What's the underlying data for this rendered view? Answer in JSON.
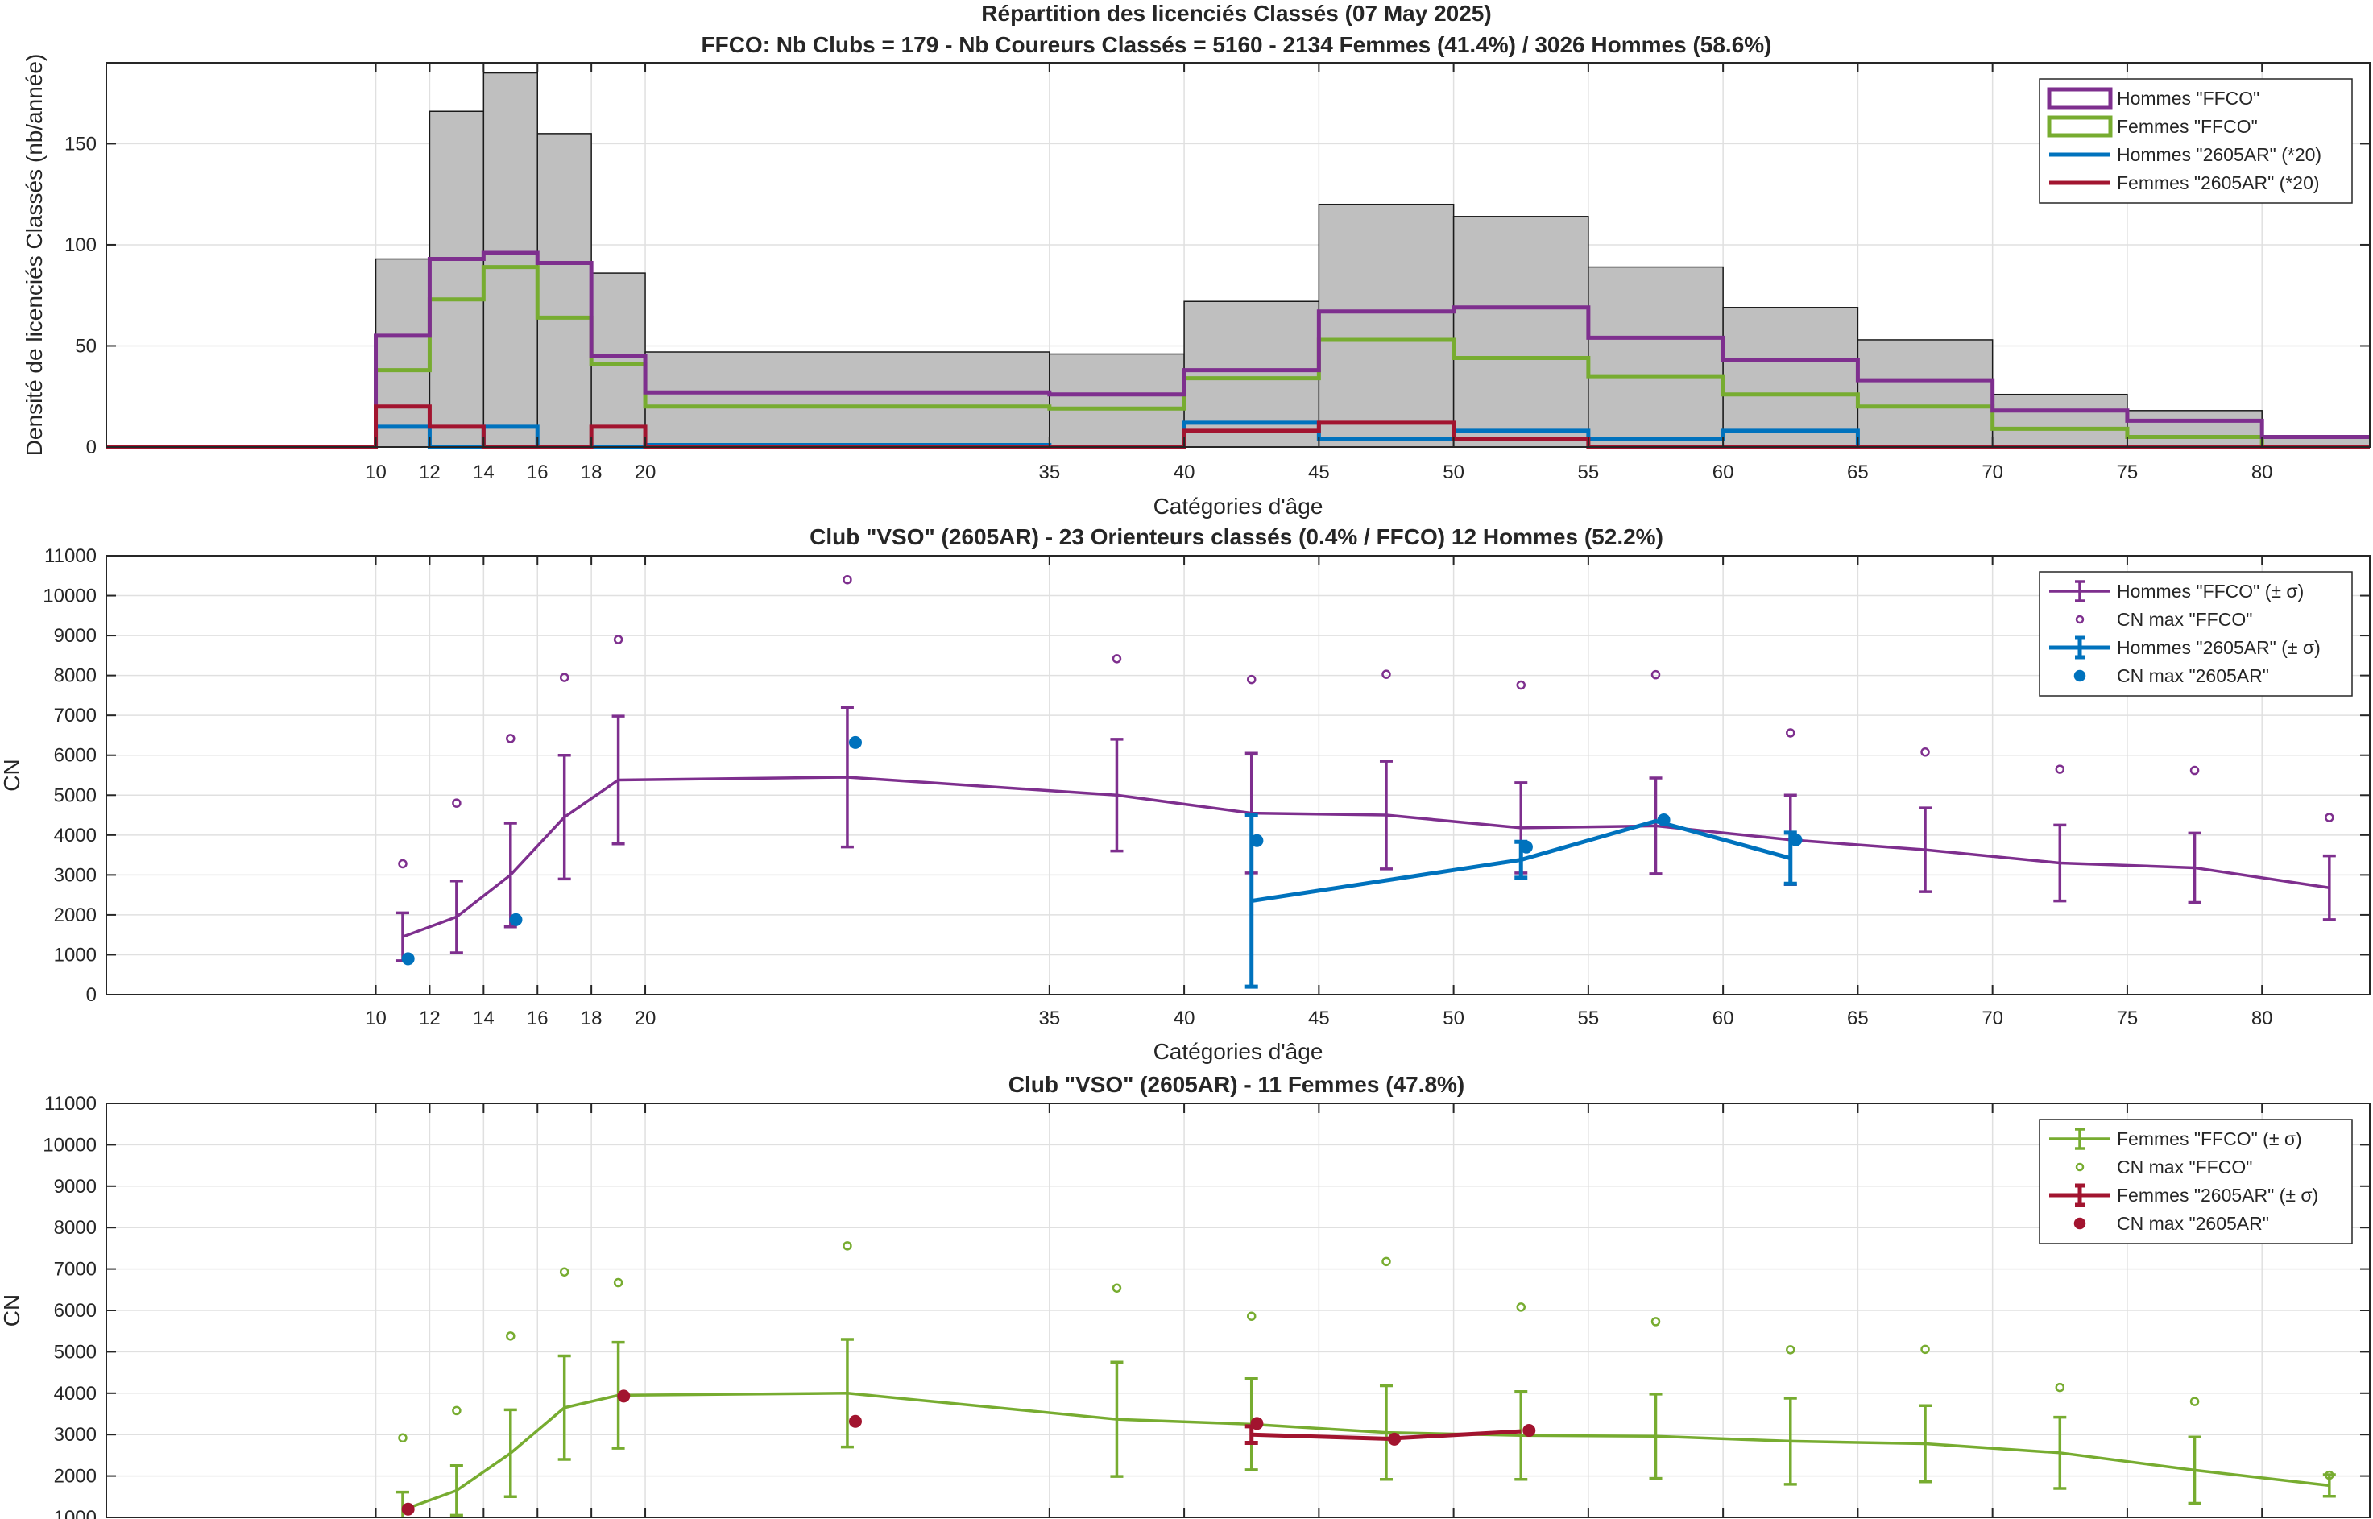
{
  "figure": {
    "title_line1": "Répartition des licenciés Classés (07 May 2025)",
    "title_line2": "FFCO: Nb Clubs = 179   -   Nb Coureurs Classés = 5160   -   2134 Femmes (41.4%) / 3026 Hommes (58.6%)"
  },
  "colors": {
    "men_ffco": "#7E2F8E",
    "women_ffco": "#77AC30",
    "men_club": "#0072BD",
    "women_club": "#A2142F",
    "hist_fill": "#BFBFBF",
    "grid": "#E0E0E0"
  },
  "chart_data": [
    {
      "type": "bar",
      "ylabel": "Densité de licenciés Classés (nb/année)",
      "xlabel": "Catégories d'âge",
      "xlim": [
        0,
        84
      ],
      "ylim": [
        0,
        190
      ],
      "xticks": [
        10,
        12,
        14,
        16,
        18,
        20,
        35,
        40,
        45,
        50,
        55,
        60,
        65,
        70,
        75,
        80
      ],
      "yticks": [
        0,
        50,
        100,
        150
      ],
      "grid": true,
      "legend_position": "top-right",
      "bin_edges": [
        0,
        10,
        12,
        14,
        16,
        18,
        20,
        35,
        40,
        45,
        50,
        55,
        60,
        65,
        70,
        75,
        80,
        84
      ],
      "total": [
        0,
        93,
        166,
        185,
        155,
        86,
        47,
        46,
        72,
        120,
        114,
        89,
        69,
        53,
        26,
        18,
        5
      ],
      "series": [
        {
          "name": "Hommes \"FFCO\"",
          "color": "men_ffco",
          "values": [
            0,
            55,
            93,
            96,
            91,
            45,
            27,
            26,
            38,
            67,
            69,
            54,
            43,
            33,
            18,
            13,
            5
          ]
        },
        {
          "name": "Femmes \"FFCO\"",
          "color": "women_ffco",
          "values": [
            0,
            38,
            73,
            89,
            64,
            41,
            20,
            19,
            34,
            53,
            44,
            35,
            26,
            20,
            9,
            5,
            0
          ]
        },
        {
          "name": "Hommes \"2605AR\" (*20)",
          "color": "men_club",
          "values": [
            0,
            10,
            0,
            10,
            0,
            0,
            1,
            0,
            12,
            4,
            8,
            4,
            8,
            0,
            0,
            0,
            0
          ]
        },
        {
          "name": "Femmes \"2605AR\" (*20)",
          "color": "women_club",
          "values": [
            0,
            20,
            10,
            0,
            0,
            10,
            0,
            0,
            8,
            12,
            4,
            0,
            0,
            0,
            0,
            0,
            0
          ]
        }
      ]
    },
    {
      "type": "line",
      "title": "Club \"VSO\" (2605AR)  -  23 Orienteurs classés (0.4% / FFCO)  12 Hommes (52.2%)",
      "ylabel": "CN",
      "xlabel": "Catégories d'âge",
      "xlim": [
        0,
        84
      ],
      "ylim": [
        0,
        11000
      ],
      "xticks": [
        10,
        12,
        14,
        16,
        18,
        20,
        35,
        40,
        45,
        50,
        55,
        60,
        65,
        70,
        75,
        80
      ],
      "yticks": [
        0,
        1000,
        2000,
        3000,
        4000,
        5000,
        6000,
        7000,
        8000,
        9000,
        10000,
        11000
      ],
      "grid": true,
      "legend_position": "top-right",
      "series": [
        {
          "name": "Hommes \"FFCO\" (± σ)",
          "color": "men_ffco",
          "kind": "errorline",
          "x": [
            11,
            13,
            15,
            17,
            19,
            27.5,
            37.5,
            42.5,
            47.5,
            52.5,
            57.5,
            62.5,
            67.5,
            72.5,
            77.5,
            82.5
          ],
          "y": [
            1450,
            1950,
            3000,
            4450,
            5380,
            5450,
            5000,
            4550,
            4500,
            4180,
            4230,
            3880,
            3630,
            3300,
            3180,
            2680
          ],
          "err": [
            600,
            900,
            1300,
            1550,
            1600,
            1750,
            1400,
            1500,
            1350,
            1130,
            1200,
            1120,
            1050,
            950,
            870,
            800
          ]
        },
        {
          "name": "CN max \"FFCO\"",
          "color": "men_ffco",
          "kind": "marker",
          "x": [
            11,
            13,
            15,
            17,
            19,
            27.5,
            37.5,
            42.5,
            47.5,
            52.5,
            57.5,
            62.5,
            67.5,
            72.5,
            77.5,
            82.5
          ],
          "y": [
            3280,
            4800,
            6420,
            7950,
            8900,
            10400,
            8420,
            7900,
            8030,
            7760,
            8020,
            6560,
            6080,
            5650,
            5620,
            4440
          ]
        },
        {
          "name": "Hommes \"2605AR\" (± σ)",
          "color": "men_club",
          "kind": "errorline",
          "x": [
            42.5,
            52.5,
            57.5,
            62.5
          ],
          "y": [
            2350,
            3380,
            4350,
            3420
          ],
          "err": [
            2150,
            450,
            0,
            640
          ]
        },
        {
          "name": "CN max \"2605AR\"",
          "color": "men_club",
          "kind": "marker",
          "x": [
            11.2,
            15.2,
            27.8,
            42.7,
            52.7,
            57.8,
            62.7
          ],
          "y": [
            900,
            1880,
            6320,
            3860,
            3700,
            4380,
            3880
          ]
        }
      ]
    },
    {
      "type": "line",
      "title": "Club \"VSO\" (2605AR)  -  11 Femmes (47.8%)",
      "ylabel": "CN",
      "xlim": [
        0,
        84
      ],
      "ylim": [
        1000,
        11000
      ],
      "xticks": [
        10,
        12,
        14,
        16,
        18,
        20,
        35,
        40,
        45,
        50,
        55,
        60,
        65,
        70,
        75,
        80
      ],
      "yticks": [
        1000,
        2000,
        3000,
        4000,
        5000,
        6000,
        7000,
        8000,
        9000,
        10000,
        11000
      ],
      "grid": true,
      "legend_position": "top-right",
      "series": [
        {
          "name": "Femmes \"FFCO\" (± σ)",
          "color": "women_ffco",
          "kind": "errorline",
          "x": [
            11,
            13,
            15,
            17,
            19,
            27.5,
            37.5,
            42.5,
            47.5,
            52.5,
            57.5,
            62.5,
            67.5,
            72.5,
            77.5,
            82.5
          ],
          "y": [
            1180,
            1650,
            2550,
            3650,
            3950,
            4000,
            3370,
            3250,
            3050,
            2980,
            2960,
            2840,
            2780,
            2560,
            2140,
            1770
          ],
          "err": [
            430,
            600,
            1050,
            1250,
            1280,
            1300,
            1380,
            1100,
            1130,
            1060,
            1020,
            1040,
            920,
            860,
            800,
            260
          ]
        },
        {
          "name": "CN max \"FFCO\"",
          "color": "women_ffco",
          "kind": "marker",
          "x": [
            11,
            13,
            15,
            17,
            19,
            27.5,
            37.5,
            42.5,
            47.5,
            52.5,
            57.5,
            62.5,
            67.5,
            72.5,
            77.5,
            82.5
          ],
          "y": [
            2920,
            3580,
            5380,
            6930,
            6670,
            7560,
            6540,
            5860,
            7180,
            6080,
            5730,
            5050,
            5060,
            4140,
            3800,
            2020
          ]
        },
        {
          "name": "Femmes \"2605AR\" (± σ)",
          "color": "women_club",
          "kind": "errorline",
          "x": [
            42.5,
            47.5,
            52.5
          ],
          "y": [
            3000,
            2900,
            3080
          ],
          "err": [
            200,
            0,
            0
          ]
        },
        {
          "name": "CN max \"2605AR\"",
          "color": "women_club",
          "kind": "marker",
          "x": [
            11.2,
            19.2,
            27.8,
            42.7,
            47.8,
            52.8
          ],
          "y": [
            1200,
            3930,
            3320,
            3270,
            2890,
            3100
          ]
        }
      ]
    }
  ]
}
